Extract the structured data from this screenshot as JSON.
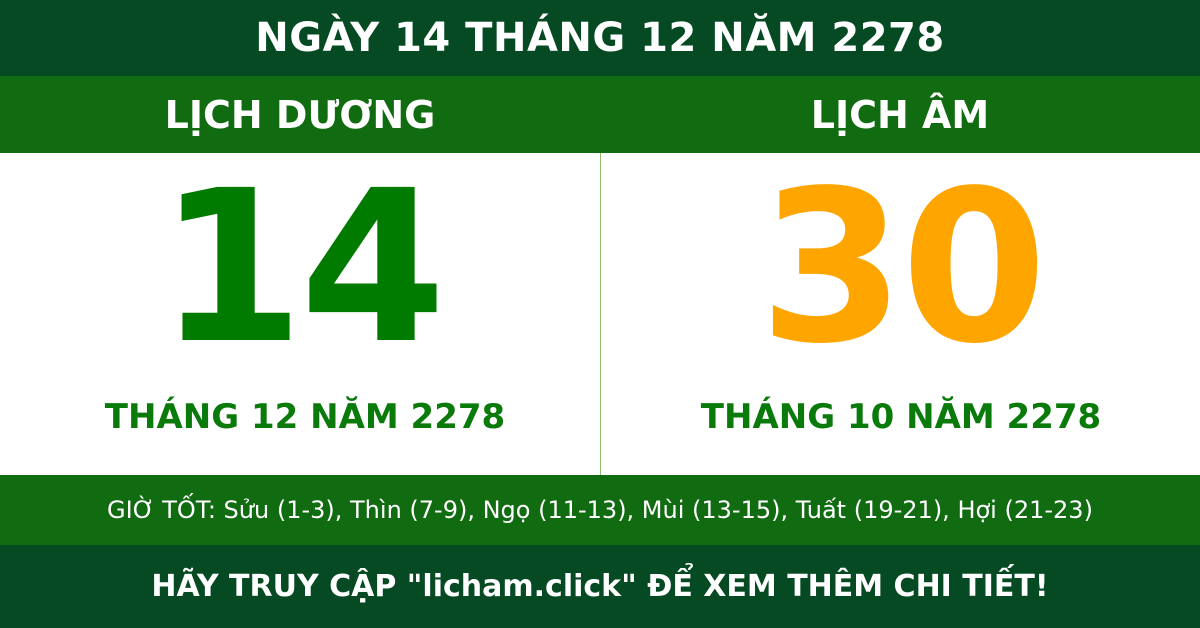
{
  "title": "NGÀY 14 THÁNG 12 NĂM 2278",
  "solar": {
    "heading": "LỊCH DƯƠNG",
    "day": "14",
    "month_year": "THÁNG 12 NĂM 2278",
    "color": "#007b00"
  },
  "lunar": {
    "heading": "LỊCH ÂM",
    "day": "30",
    "month_year": "THÁNG 10 NĂM 2278",
    "color": "#ffa500"
  },
  "good_hours": "GIỜ TỐT: Sửu (1-3), Thìn (7-9), Ngọ (11-13), Mùi (13-15), Tuất (19-21), Hợi (21-23)",
  "footer": "HÃY TRUY CẬP \"licham.click\" ĐỂ XEM THÊM CHI TIẾT!",
  "colors": {
    "dark_green": "#054a22",
    "green": "#116b11"
  }
}
